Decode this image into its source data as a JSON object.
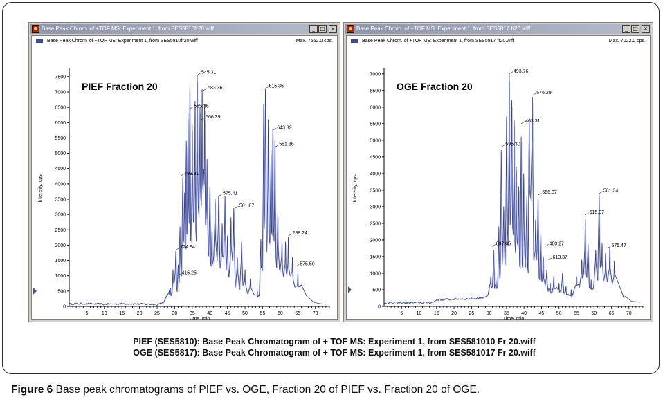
{
  "caption": {
    "line1": "PIEF (SES5810): Base Peak Chromatogram of + TOF MS: Experiment 1, from SES581010 Fr 20.wiff",
    "line2": "OGE (SES5817): Base Peak Chromatogram of + TOF MS: Experiment 1, from SES581017 Fr 20.wiff"
  },
  "figure_caption": {
    "label": "Figure 6",
    "text": " Base peak chromatograms of PIEF vs. OGE, Fraction 20 of PIEF vs. Fraction 20 of OGE."
  },
  "windows": [
    {
      "title": "Base Peak Chrom. of +TOF MS: Experiment 1, from SES5810fr20.wiff",
      "legend": "Base Peak Chrom. of +TOF MS: Experiment 1, from SES5810fr20.wiff",
      "max": "Max. 7552.0 cps.",
      "controls": [
        "_",
        "□",
        "×"
      ]
    },
    {
      "title": "Base Peak Chrom. of +TOF MS: Experiment 1, from SES5817 fr20.wiff",
      "legend": "Base Peak Chrom. of +TOF MS: Experiment 1, from SES5817 fr20.wiff",
      "max": "Max. 7022.0 cps.",
      "controls": [
        "_",
        "□",
        "×"
      ]
    }
  ],
  "colors": {
    "trace": "#2e3d9c",
    "trace_light": "#8e95c4",
    "panel": "#d4d0c8"
  },
  "chart_data": [
    {
      "type": "line",
      "title": "PIEF Fraction 20",
      "xlabel": "Time, min",
      "ylabel": "Intensity, cps",
      "xlim": [
        0,
        74
      ],
      "ylim": [
        0,
        7700
      ],
      "xticks": [
        5,
        10,
        15,
        20,
        25,
        30,
        35,
        40,
        45,
        50,
        55,
        60,
        65,
        70
      ],
      "yticks": [
        500,
        1000,
        1500,
        2000,
        2500,
        3000,
        3500,
        4000,
        4500,
        5000,
        5500,
        6000,
        6500,
        7000,
        7500
      ],
      "baseline": [
        [
          0,
          80
        ],
        [
          5,
          90
        ],
        [
          10,
          70
        ],
        [
          15,
          90
        ],
        [
          20,
          80
        ],
        [
          25,
          60
        ],
        [
          27,
          150
        ],
        [
          28,
          400
        ],
        [
          29,
          600
        ]
      ],
      "peaks": [
        {
          "t": 28.8,
          "h": 600
        },
        {
          "t": 29.5,
          "h": 1200
        },
        {
          "t": 30.3,
          "h": 1800
        },
        {
          "t": 31.0,
          "h": 1350
        },
        {
          "t": 31.5,
          "h": 2600
        },
        {
          "t": 32.3,
          "h": 4200
        },
        {
          "t": 32.8,
          "h": 3700
        },
        {
          "t": 33.3,
          "h": 5400
        },
        {
          "t": 33.8,
          "h": 6300
        },
        {
          "t": 34.3,
          "h": 7200
        },
        {
          "t": 35.0,
          "h": 5900
        },
        {
          "t": 35.8,
          "h": 6700
        },
        {
          "t": 36.4,
          "h": 7550
        },
        {
          "t": 37.2,
          "h": 6500
        },
        {
          "t": 37.8,
          "h": 7100
        },
        {
          "t": 38.5,
          "h": 6600
        },
        {
          "t": 39.2,
          "h": 4800
        },
        {
          "t": 40.0,
          "h": 3900
        },
        {
          "t": 40.6,
          "h": 2500
        },
        {
          "t": 41.5,
          "h": 3500
        },
        {
          "t": 42.5,
          "h": 3600
        },
        {
          "t": 43.5,
          "h": 2700
        },
        {
          "t": 44.3,
          "h": 3600
        },
        {
          "t": 45.0,
          "h": 2300
        },
        {
          "t": 46.0,
          "h": 2900
        },
        {
          "t": 46.8,
          "h": 3200
        },
        {
          "t": 47.8,
          "h": 1600
        },
        {
          "t": 49.0,
          "h": 2100
        },
        {
          "t": 50.0,
          "h": 1200
        },
        {
          "t": 51.5,
          "h": 900
        },
        {
          "t": 53.5,
          "h": 500
        },
        {
          "t": 54.5,
          "h": 2200
        },
        {
          "t": 55.3,
          "h": 6600
        },
        {
          "t": 55.8,
          "h": 7100
        },
        {
          "t": 56.6,
          "h": 6100
        },
        {
          "t": 57.4,
          "h": 5100
        },
        {
          "t": 57.9,
          "h": 5800
        },
        {
          "t": 58.5,
          "h": 5400
        },
        {
          "t": 59.3,
          "h": 3000
        },
        {
          "t": 60.5,
          "h": 2100
        },
        {
          "t": 61.5,
          "h": 2100
        },
        {
          "t": 62.3,
          "h": 2250
        },
        {
          "t": 63.5,
          "h": 1600
        },
        {
          "t": 65.0,
          "h": 1100
        }
      ],
      "tail": [
        [
          66,
          700
        ],
        [
          68,
          300
        ],
        [
          70,
          120
        ],
        [
          72,
          80
        ],
        [
          73,
          70
        ]
      ],
      "annotations": [
        {
          "label": "545.31",
          "t": 36.4,
          "h": 7550
        },
        {
          "label": "583.36",
          "t": 38.2,
          "h": 7050
        },
        {
          "label": "585.36",
          "t": 34.3,
          "h": 6450
        },
        {
          "label": "566.39",
          "t": 37.6,
          "h": 6100
        },
        {
          "label": "615.36",
          "t": 55.6,
          "h": 7100
        },
        {
          "label": "643.39",
          "t": 57.9,
          "h": 5750
        },
        {
          "label": "581.36",
          "t": 58.5,
          "h": 5200
        },
        {
          "label": "493.81",
          "t": 31.5,
          "h": 4250
        },
        {
          "label": "575.41",
          "t": 42.5,
          "h": 3600
        },
        {
          "label": "501.87",
          "t": 47.2,
          "h": 3200
        },
        {
          "label": "288.24",
          "t": 62.3,
          "h": 2300
        },
        {
          "label": "724.94",
          "t": 30.4,
          "h": 1850
        },
        {
          "label": "575.50",
          "t": 64.4,
          "h": 1300
        },
        {
          "label": "415.25",
          "t": 30.8,
          "h": 1000
        }
      ]
    },
    {
      "type": "line",
      "title": "OGE Fraction 20",
      "xlabel": "Time, min",
      "ylabel": "Intensity, cps",
      "xlim": [
        0,
        74
      ],
      "ylim": [
        0,
        7100
      ],
      "xticks": [
        5,
        10,
        15,
        20,
        25,
        30,
        35,
        40,
        45,
        50,
        55,
        60,
        65,
        70
      ],
      "yticks": [
        500,
        1000,
        1500,
        2000,
        2500,
        3000,
        3500,
        4000,
        4500,
        5000,
        5500,
        6000,
        6500,
        7000
      ],
      "baseline": [
        [
          0,
          100
        ],
        [
          5,
          110
        ],
        [
          10,
          110
        ],
        [
          14,
          120
        ],
        [
          15,
          200
        ],
        [
          20,
          220
        ],
        [
          25,
          230
        ],
        [
          28,
          260
        ],
        [
          30,
          350
        ]
      ],
      "peaks": [
        {
          "t": 30.5,
          "h": 900
        },
        {
          "t": 31.3,
          "h": 1700
        },
        {
          "t": 32.0,
          "h": 800
        },
        {
          "t": 32.8,
          "h": 2400
        },
        {
          "t": 33.5,
          "h": 4700
        },
        {
          "t": 34.2,
          "h": 3000
        },
        {
          "t": 35.0,
          "h": 5700
        },
        {
          "t": 35.8,
          "h": 7000
        },
        {
          "t": 36.5,
          "h": 6200
        },
        {
          "t": 37.2,
          "h": 5600
        },
        {
          "t": 37.8,
          "h": 4200
        },
        {
          "t": 38.5,
          "h": 3600
        },
        {
          "t": 39.2,
          "h": 5100
        },
        {
          "t": 39.9,
          "h": 4000
        },
        {
          "t": 40.8,
          "h": 3300
        },
        {
          "t": 41.5,
          "h": 5700
        },
        {
          "t": 42.4,
          "h": 6300
        },
        {
          "t": 43.3,
          "h": 2600
        },
        {
          "t": 44.0,
          "h": 3300
        },
        {
          "t": 44.8,
          "h": 2200
        },
        {
          "t": 45.5,
          "h": 1500
        },
        {
          "t": 46.5,
          "h": 1100
        },
        {
          "t": 47.5,
          "h": 700
        },
        {
          "t": 48.5,
          "h": 900
        },
        {
          "t": 50.0,
          "h": 700
        },
        {
          "t": 51.0,
          "h": 1000
        },
        {
          "t": 52.0,
          "h": 600
        },
        {
          "t": 53.5,
          "h": 500
        },
        {
          "t": 55.0,
          "h": 900
        },
        {
          "t": 56.5,
          "h": 1400
        },
        {
          "t": 57.5,
          "h": 2700
        },
        {
          "t": 58.3,
          "h": 1900
        },
        {
          "t": 59.2,
          "h": 800
        },
        {
          "t": 60.5,
          "h": 1700
        },
        {
          "t": 61.5,
          "h": 3400
        },
        {
          "t": 62.3,
          "h": 1900
        },
        {
          "t": 63.3,
          "h": 1600
        },
        {
          "t": 64.5,
          "h": 1750
        },
        {
          "t": 65.8,
          "h": 1350
        }
      ],
      "tail": [
        [
          67,
          700
        ],
        [
          69,
          300
        ],
        [
          71,
          150
        ],
        [
          73,
          120
        ]
      ],
      "annotations": [
        {
          "label": "493.76",
          "t": 35.8,
          "h": 7000
        },
        {
          "label": "546.29",
          "t": 42.4,
          "h": 6350
        },
        {
          "label": "463.31",
          "t": 39.2,
          "h": 5500
        },
        {
          "label": "595.30",
          "t": 33.5,
          "h": 4800
        },
        {
          "label": "666.37",
          "t": 44.0,
          "h": 3350
        },
        {
          "label": "581.34",
          "t": 61.5,
          "h": 3400
        },
        {
          "label": "615.37",
          "t": 57.5,
          "h": 2750
        },
        {
          "label": "607.65",
          "t": 30.8,
          "h": 1800
        },
        {
          "label": "575.47",
          "t": 63.8,
          "h": 1750
        },
        {
          "label": "460.27",
          "t": 46.0,
          "h": 1800
        },
        {
          "label": "613.37",
          "t": 47.0,
          "h": 1400
        }
      ]
    }
  ]
}
